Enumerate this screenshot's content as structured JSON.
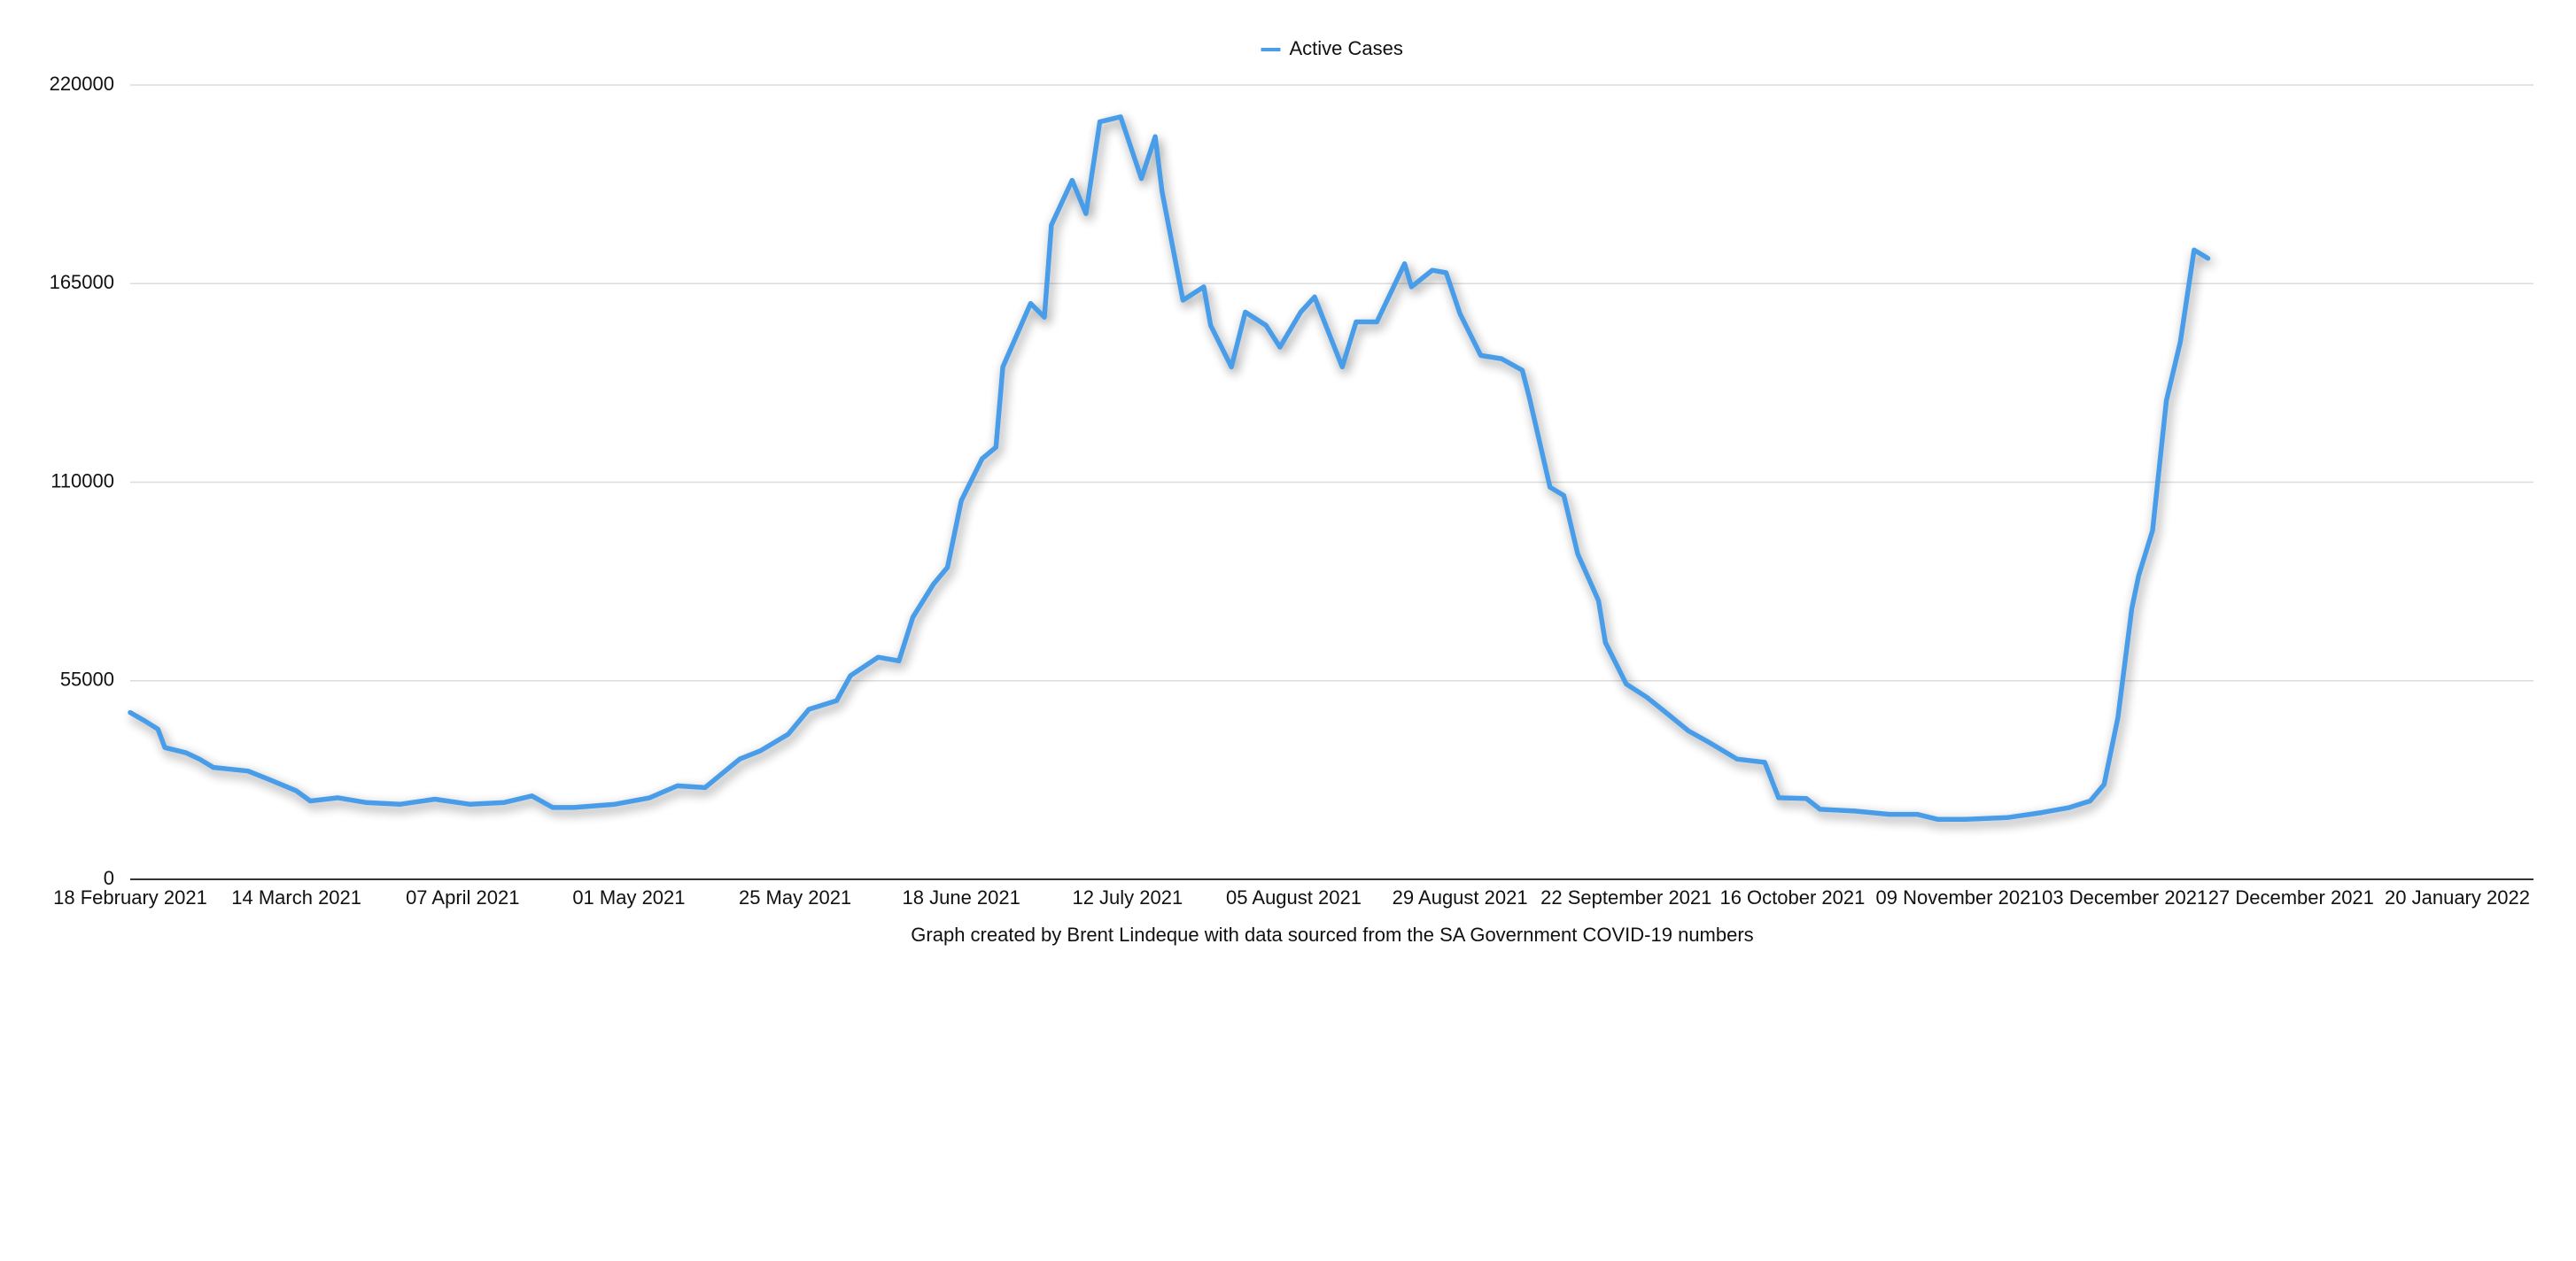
{
  "chart_data": {
    "type": "line",
    "caption": "Graph created by Brent Lindeque with data sourced from the SA Government COVID-19 numbers",
    "legend": "top",
    "grid": true,
    "x": [
      "2021-02-18",
      "2021-02-20",
      "2021-02-22",
      "2021-02-23",
      "2021-02-26",
      "2021-02-28",
      "2021-03-02",
      "2021-03-07",
      "2021-03-10",
      "2021-03-14",
      "2021-03-16",
      "2021-03-20",
      "2021-03-24",
      "2021-03-29",
      "2021-04-03",
      "2021-04-08",
      "2021-04-13",
      "2021-04-17",
      "2021-04-20",
      "2021-04-23",
      "2021-04-29",
      "2021-05-04",
      "2021-05-08",
      "2021-05-12",
      "2021-05-17",
      "2021-05-20",
      "2021-05-24",
      "2021-05-27",
      "2021-05-31",
      "2021-06-02",
      "2021-06-06",
      "2021-06-09",
      "2021-06-11",
      "2021-06-14",
      "2021-06-16",
      "2021-06-18",
      "2021-06-21",
      "2021-06-23",
      "2021-06-24",
      "2021-06-28",
      "2021-06-30",
      "2021-07-01",
      "2021-07-04",
      "2021-07-06",
      "2021-07-08",
      "2021-07-11",
      "2021-07-14",
      "2021-07-16",
      "2021-07-17",
      "2021-07-20",
      "2021-07-23",
      "2021-07-24",
      "2021-07-27",
      "2021-07-29",
      "2021-08-01",
      "2021-08-03",
      "2021-08-06",
      "2021-08-08",
      "2021-08-12",
      "2021-08-14",
      "2021-08-17",
      "2021-08-21",
      "2021-08-22",
      "2021-08-25",
      "2021-08-27",
      "2021-08-29",
      "2021-09-01",
      "2021-09-04",
      "2021-09-07",
      "2021-09-08",
      "2021-09-11",
      "2021-09-13",
      "2021-09-15",
      "2021-09-18",
      "2021-09-19",
      "2021-09-22",
      "2021-09-25",
      "2021-09-28",
      "2021-10-01",
      "2021-10-04",
      "2021-10-08",
      "2021-10-12",
      "2021-10-14",
      "2021-10-18",
      "2021-10-20",
      "2021-10-25",
      "2021-10-30",
      "2021-11-03",
      "2021-11-06",
      "2021-11-10",
      "2021-11-16",
      "2021-11-21",
      "2021-11-25",
      "2021-11-28",
      "2021-11-30",
      "2021-12-02",
      "2021-12-04",
      "2021-12-05",
      "2021-12-07",
      "2021-12-09",
      "2021-12-11",
      "2021-12-13",
      "2021-12-15"
    ],
    "series": [
      {
        "name": "Active Cases",
        "color": "#4a9de8",
        "values": [
          46200,
          44000,
          41600,
          36500,
          35100,
          33300,
          31000,
          30000,
          27700,
          24500,
          21700,
          22600,
          21300,
          20800,
          22200,
          20800,
          21300,
          23100,
          19900,
          19900,
          20800,
          22600,
          25900,
          25400,
          33300,
          35600,
          40200,
          47100,
          49500,
          56400,
          61500,
          60500,
          72600,
          81800,
          86400,
          104900,
          116500,
          119700,
          141900,
          159500,
          155700,
          181200,
          193600,
          184400,
          209800,
          211200,
          194100,
          205700,
          190400,
          160400,
          164100,
          153400,
          141900,
          157100,
          153400,
          147400,
          157100,
          161300,
          141900,
          154400,
          154400,
          170500,
          164100,
          168700,
          168000,
          156700,
          145100,
          144200,
          141000,
          133600,
          108600,
          106300,
          90100,
          77200,
          65600,
          54100,
          50400,
          45800,
          41100,
          37900,
          33300,
          32400,
          22600,
          22400,
          19400,
          18900,
          18000,
          18000,
          16600,
          16600,
          17100,
          18500,
          19900,
          21700,
          26300,
          44800,
          74900,
          84100,
          96600,
          132600,
          148800,
          174300,
          172000
        ]
      }
    ],
    "xlim": [
      "2021-02-18",
      "2022-01-31"
    ],
    "xticks": [
      {
        "value": "2021-02-18",
        "label": "18 February 2021"
      },
      {
        "value": "2021-03-14",
        "label": "14 March 2021"
      },
      {
        "value": "2021-04-07",
        "label": "07 April 2021"
      },
      {
        "value": "2021-05-01",
        "label": "01 May 2021"
      },
      {
        "value": "2021-05-25",
        "label": "25 May 2021"
      },
      {
        "value": "2021-06-18",
        "label": "18 June 2021"
      },
      {
        "value": "2021-07-12",
        "label": "12 July 2021"
      },
      {
        "value": "2021-08-05",
        "label": "05 August 2021"
      },
      {
        "value": "2021-08-29",
        "label": "29 August 2021"
      },
      {
        "value": "2021-09-22",
        "label": "22 September 2021"
      },
      {
        "value": "2021-10-16",
        "label": "16 October 2021"
      },
      {
        "value": "2021-11-09",
        "label": "09 November 2021"
      },
      {
        "value": "2021-12-03",
        "label": "03 December 2021"
      },
      {
        "value": "2021-12-27",
        "label": "27 December 2021"
      },
      {
        "value": "2022-01-20",
        "label": "20 January 2022"
      }
    ],
    "ylim": [
      0,
      220000
    ],
    "yticks": [
      0,
      55000,
      110000,
      165000,
      220000
    ]
  }
}
